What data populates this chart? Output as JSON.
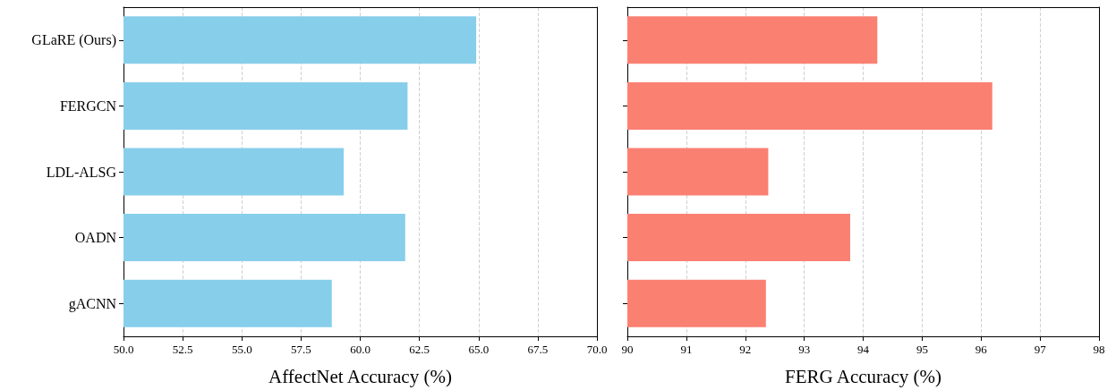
{
  "chart_data": [
    {
      "type": "bar",
      "orientation": "horizontal",
      "xlabel": "AffectNet Accuracy (%)",
      "categories": [
        "GLaRE (Ours)",
        "FERGCN",
        "LDL-ALSG",
        "OADN",
        "gACNN"
      ],
      "values": [
        64.9,
        62.0,
        59.3,
        61.9,
        58.8
      ],
      "color": "#87ceeb",
      "xlim": [
        50,
        70
      ],
      "xticks": [
        {
          "value": 50,
          "label": "50.0"
        },
        {
          "value": 52.5,
          "label": "52.5"
        },
        {
          "value": 55,
          "label": "55.0"
        },
        {
          "value": 57.5,
          "label": "57.5"
        },
        {
          "value": 60,
          "label": "60.0"
        },
        {
          "value": 62.5,
          "label": "62.5"
        },
        {
          "value": 65,
          "label": "65.0"
        },
        {
          "value": 67.5,
          "label": "67.5"
        },
        {
          "value": 70,
          "label": "70.0"
        }
      ],
      "grid": "x"
    },
    {
      "type": "bar",
      "orientation": "horizontal",
      "xlabel": "FERG Accuracy (%)",
      "categories": [
        null,
        null,
        null,
        null,
        null
      ],
      "values": [
        94.24,
        96.19,
        92.39,
        93.78,
        92.35
      ],
      "color": "#fa8072",
      "xlim": [
        90,
        98
      ],
      "xticks": [
        90,
        91,
        92,
        93,
        94,
        95,
        96,
        97,
        98
      ],
      "grid": "x",
      "tick_labels": "x"
    }
  ]
}
